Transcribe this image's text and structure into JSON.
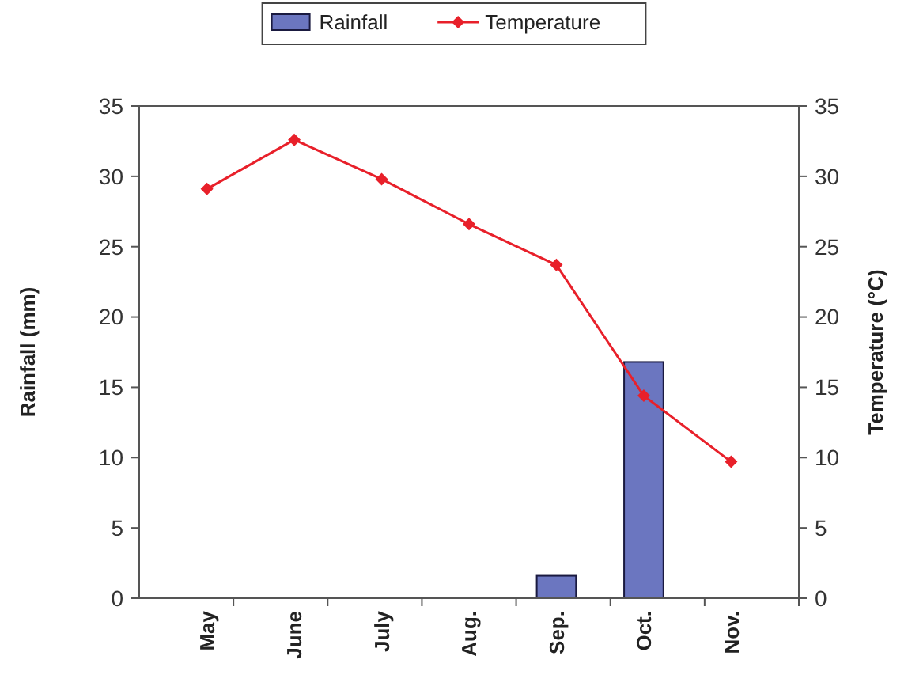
{
  "chart_data": {
    "type": "bar",
    "ylabel": "Rainfall (mm)",
    "y2label": "Temperature (°C)",
    "categories": [
      "May",
      "June",
      "July",
      "Aug.",
      "Sep.",
      "Oct.",
      "Nov."
    ],
    "series": [
      {
        "name": "Rainfall",
        "color": "#6b76c0",
        "values": [
          0,
          0,
          0,
          0,
          1.6,
          16.8,
          0
        ]
      },
      {
        "name": "Temperature",
        "type": "line",
        "axis": "y2",
        "color": "#e8202a",
        "marker": "diamond",
        "values": [
          29.1,
          32.6,
          29.8,
          26.6,
          23.7,
          14.4,
          9.7
        ]
      }
    ],
    "ylim": [
      0,
      35
    ],
    "yticks": [
      0,
      5,
      10,
      15,
      20,
      25,
      30,
      35
    ],
    "y2lim": [
      0,
      35
    ],
    "y2ticks": [
      0,
      5,
      10,
      15,
      20,
      25,
      30,
      35
    ],
    "legend": "top",
    "grid": false
  }
}
